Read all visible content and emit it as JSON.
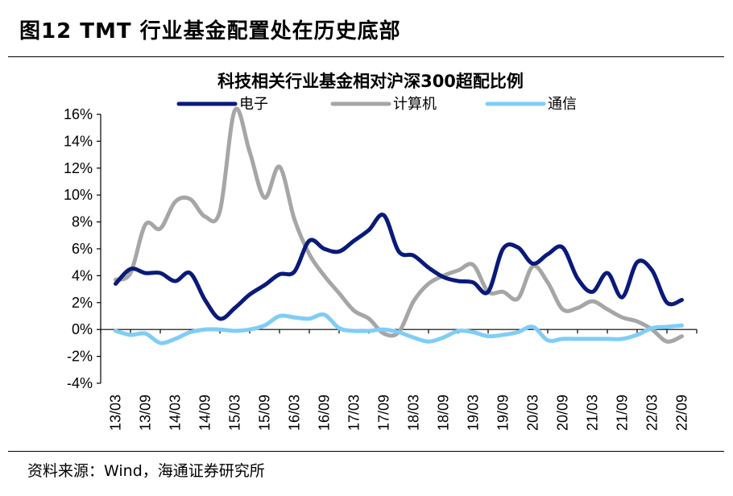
{
  "figure": {
    "title": "图12 TMT 行业基金配置处在历史底部",
    "source": "资料来源：Wind，海通证券研究所"
  },
  "chart_data": {
    "type": "line",
    "title": "科技相关行业基金相对沪深300超配比例",
    "xlabel": "",
    "ylabel": "",
    "ylim": [
      -4,
      16
    ],
    "yticks": [
      -4,
      -2,
      0,
      2,
      4,
      6,
      8,
      10,
      12,
      14,
      16
    ],
    "ytick_labels": [
      "-4%",
      "-2%",
      "0%",
      "2%",
      "4%",
      "6%",
      "8%",
      "10%",
      "12%",
      "14%",
      "16%"
    ],
    "xticks": [
      "13/03",
      "13/09",
      "14/03",
      "14/09",
      "15/03",
      "15/09",
      "16/03",
      "16/09",
      "17/03",
      "17/09",
      "18/03",
      "18/09",
      "19/03",
      "19/09",
      "20/03",
      "20/09",
      "21/03",
      "21/09",
      "22/03",
      "22/09"
    ],
    "x": [
      0,
      0.5,
      1,
      1.5,
      2,
      2.5,
      3,
      3.5,
      4,
      4.5,
      5,
      5.5,
      6,
      6.5,
      7,
      7.5,
      8,
      8.5,
      9,
      9.5,
      10,
      10.5,
      11,
      11.5,
      12,
      12.5,
      13,
      13.5,
      14,
      14.5,
      15,
      15.5,
      16,
      16.5,
      17,
      17.5,
      18,
      18.5,
      19
    ],
    "series": [
      {
        "name": "电子",
        "color": "#0a1a7a",
        "values": [
          3.4,
          4.5,
          4.2,
          4.2,
          3.6,
          4.2,
          2.2,
          0.8,
          1.6,
          2.6,
          3.3,
          4.1,
          4.3,
          6.6,
          6.0,
          5.8,
          6.6,
          7.4,
          8.5,
          5.8,
          5.5,
          4.6,
          3.9,
          3.6,
          3.5,
          2.8,
          6.0,
          6.1,
          4.9,
          5.6,
          6.1,
          3.8,
          2.8,
          4.2,
          2.4,
          5.0,
          4.4,
          2.0,
          2.2
        ]
      },
      {
        "name": "计算机",
        "color": "#a6a6a6",
        "values": [
          3.7,
          4.2,
          7.8,
          7.5,
          9.5,
          9.7,
          8.4,
          8.8,
          16.3,
          13.2,
          9.8,
          12.1,
          8.2,
          5.6,
          4.0,
          2.7,
          1.4,
          0.8,
          -0.3,
          -0.2,
          2.1,
          3.4,
          4.0,
          4.4,
          4.8,
          2.8,
          2.8,
          2.3,
          4.7,
          3.5,
          1.5,
          1.6,
          2.1,
          1.5,
          0.9,
          0.6,
          0.0,
          -0.9,
          -0.5
        ]
      },
      {
        "name": "通信",
        "color": "#7fcdf7",
        "values": [
          -0.1,
          -0.4,
          -0.3,
          -1.0,
          -0.7,
          -0.2,
          0.0,
          0.0,
          -0.1,
          0.0,
          0.3,
          1.0,
          0.9,
          0.8,
          1.1,
          0.1,
          -0.1,
          -0.1,
          0.0,
          -0.2,
          -0.6,
          -0.9,
          -0.6,
          -0.1,
          -0.2,
          -0.5,
          -0.4,
          -0.2,
          0.2,
          -0.8,
          -0.7,
          -0.7,
          -0.7,
          -0.7,
          -0.7,
          -0.4,
          0.1,
          0.2,
          0.3
        ]
      }
    ],
    "legend": "top-center",
    "grid": false
  }
}
